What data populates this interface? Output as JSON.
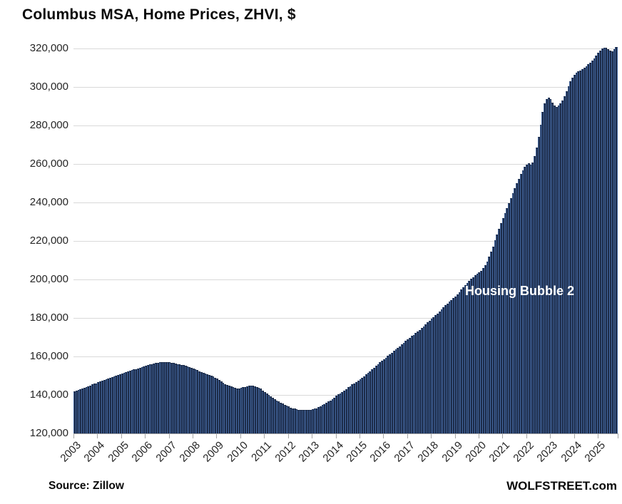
{
  "title": "Columbus MSA, Home Prices, ZHVI, $",
  "annotation": "Housing Bubble 2",
  "footer": {
    "source": "Source: Zillow",
    "site": "WOLFSTREET.com"
  },
  "colors": {
    "bar_fill": "#1c2b48",
    "bar_stripe": "#44679f",
    "gridline": "#d9d9d9",
    "axis": "#a6a6a6",
    "annotation_text": "#ffffff",
    "text": "#262626"
  },
  "chart_data": {
    "type": "bar",
    "title": "Columbus MSA, Home Prices, ZHVI, $",
    "xlabel": "",
    "ylabel": "",
    "unit": "$",
    "ylim": [
      120000,
      320000
    ],
    "ytick_step": 20000,
    "grid": "horizontal",
    "legend": "none",
    "x_start": "2003-01",
    "x_end": "2025-10",
    "year_ticks": [
      2003,
      2004,
      2005,
      2006,
      2007,
      2008,
      2009,
      2010,
      2011,
      2012,
      2013,
      2014,
      2015,
      2016,
      2017,
      2018,
      2019,
      2020,
      2021,
      2022,
      2023,
      2024,
      2025
    ],
    "annotation": {
      "text": "Housing Bubble 2",
      "color": "#ffffff"
    },
    "values": [
      141900,
      142300,
      142600,
      143000,
      143400,
      143800,
      144200,
      144600,
      145000,
      145400,
      145800,
      146100,
      146500,
      146900,
      147300,
      147700,
      148200,
      148600,
      149000,
      149400,
      149800,
      150100,
      150500,
      150900,
      151200,
      151600,
      151900,
      152300,
      152600,
      152900,
      153200,
      153500,
      153800,
      154100,
      154500,
      154800,
      155200,
      155500,
      155800,
      156000,
      156300,
      156500,
      156700,
      156900,
      157000,
      157100,
      157200,
      157100,
      157000,
      156800,
      156600,
      156400,
      156100,
      155900,
      155600,
      155400,
      155100,
      154800,
      154500,
      154100,
      153700,
      153300,
      152800,
      152300,
      151900,
      151500,
      151200,
      150800,
      150400,
      150000,
      149500,
      149000,
      148400,
      147700,
      147000,
      146300,
      145700,
      145200,
      144800,
      144400,
      144100,
      143800,
      143500,
      143400,
      143600,
      143900,
      144200,
      144500,
      144700,
      144800,
      144700,
      144500,
      144200,
      143800,
      143200,
      142400,
      141600,
      140800,
      140000,
      139200,
      138500,
      137800,
      137200,
      136600,
      136000,
      135400,
      134900,
      134400,
      134000,
      133500,
      133100,
      132800,
      132600,
      132400,
      132300,
      132200,
      132200,
      132200,
      132300,
      132400,
      132500,
      132800,
      133100,
      133600,
      134100,
      134700,
      135300,
      135900,
      136500,
      137200,
      137900,
      138700,
      139500,
      140200,
      140900,
      141600,
      142400,
      143100,
      143900,
      144600,
      145400,
      146100,
      146800,
      147500,
      148300,
      149000,
      149800,
      150600,
      151500,
      152400,
      153300,
      154200,
      155100,
      156000,
      156900,
      157700,
      158500,
      159300,
      160200,
      161000,
      161900,
      162800,
      163600,
      164500,
      165300,
      166200,
      167000,
      168000,
      169000,
      169800,
      170600,
      171300,
      172100,
      172900,
      173800,
      174700,
      175600,
      176600,
      177600,
      178500,
      179500,
      180400,
      181400,
      182400,
      183400,
      184500,
      185500,
      186500,
      187500,
      188400,
      189300,
      190300,
      191200,
      192300,
      193500,
      194700,
      195900,
      197100,
      198300,
      199400,
      200400,
      201300,
      202100,
      202900,
      203700,
      204600,
      205800,
      207400,
      209400,
      211800,
      214400,
      217200,
      220200,
      223200,
      226200,
      229200,
      231800,
      234400,
      237000,
      239600,
      242200,
      244800,
      247400,
      250000,
      252400,
      254700,
      256800,
      258500,
      259600,
      260300,
      259500,
      260800,
      264000,
      268500,
      274000,
      280500,
      287000,
      291500,
      293700,
      294500,
      293800,
      292000,
      290300,
      289600,
      290200,
      291400,
      293000,
      295200,
      297800,
      300400,
      302800,
      304800,
      306300,
      307300,
      308100,
      308700,
      309300,
      310000,
      310800,
      311700,
      312700,
      313800,
      315000,
      316300,
      317800,
      319000,
      319900,
      320400,
      320300,
      319700,
      319000,
      318600,
      319500,
      320800
    ]
  }
}
